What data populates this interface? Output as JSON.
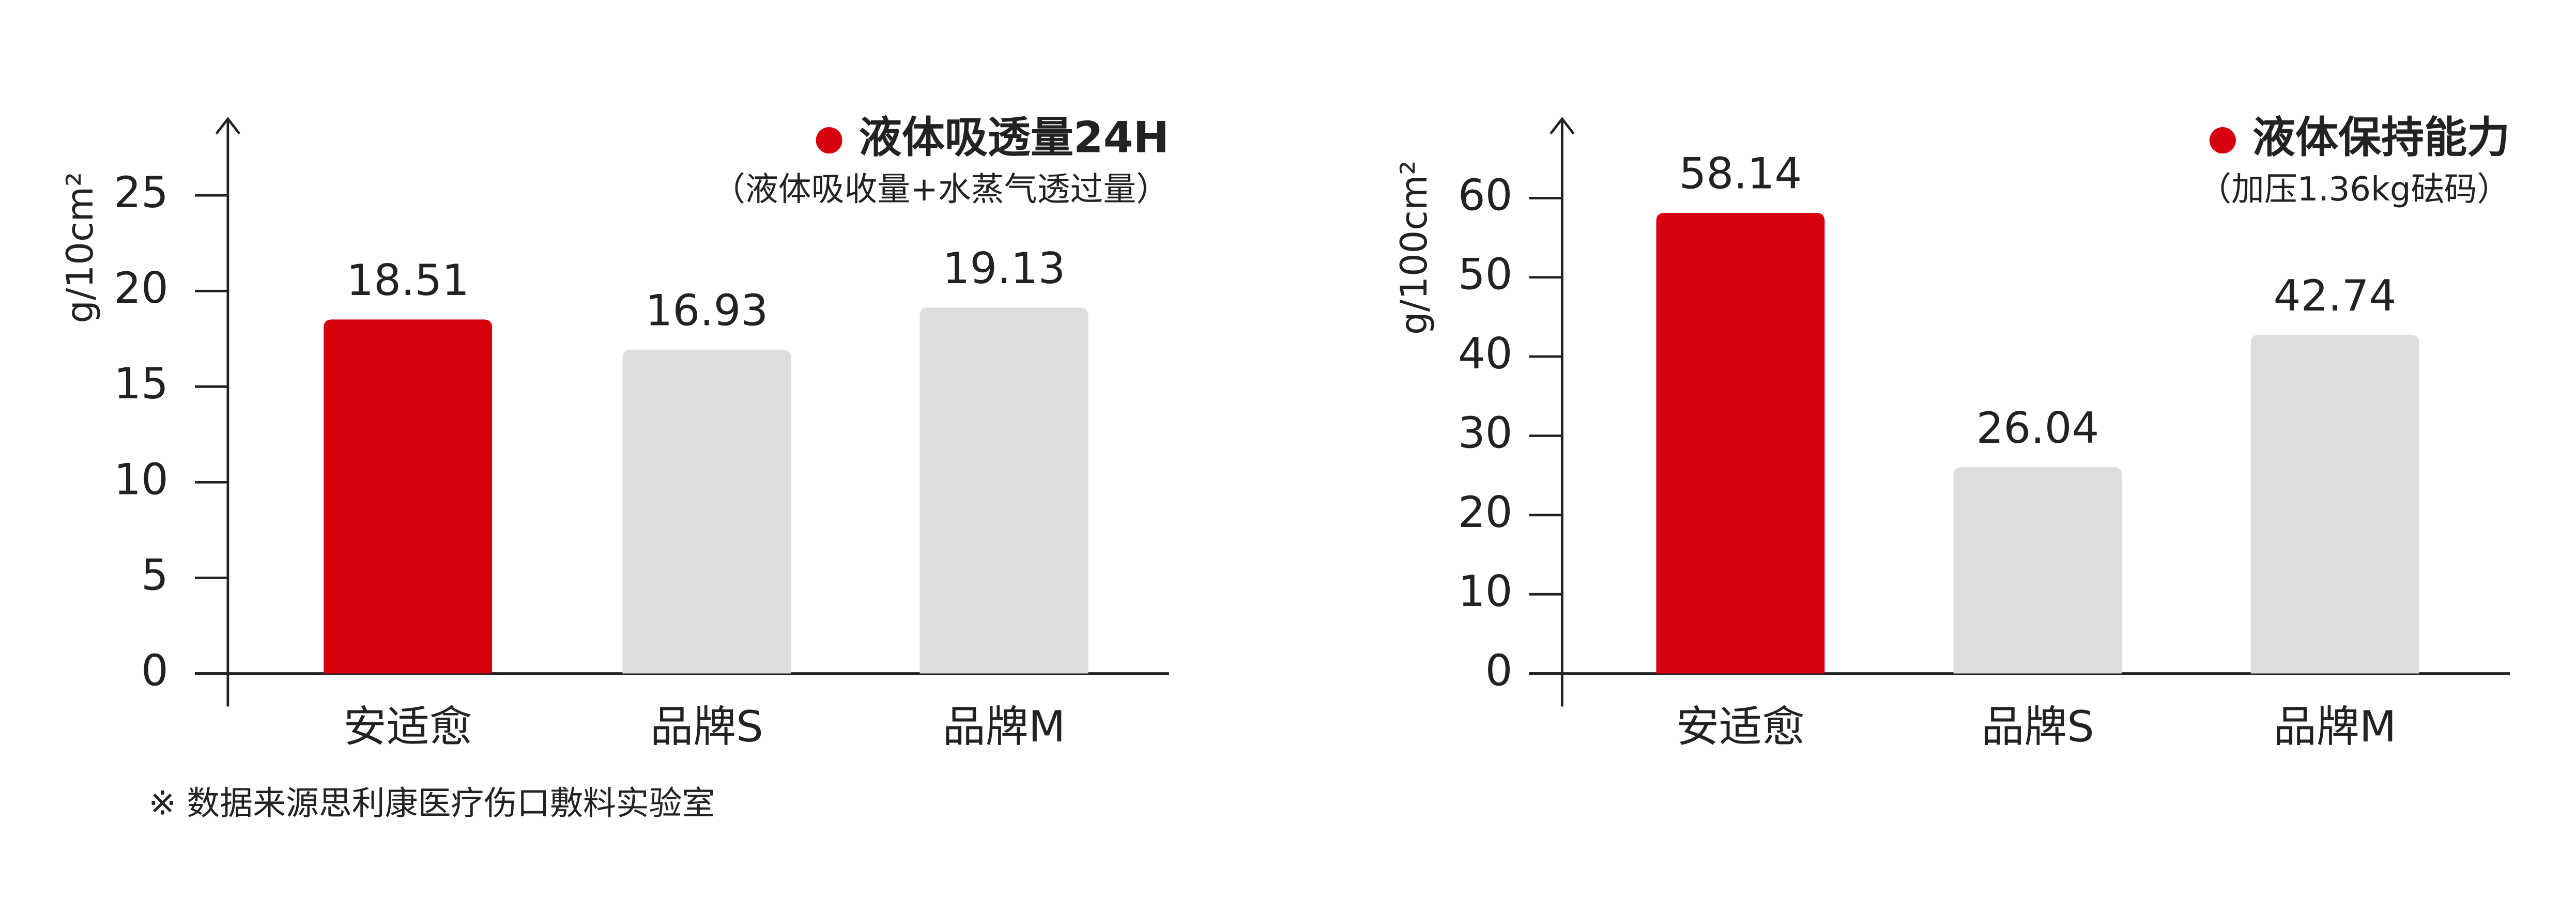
{
  "chart_data": [
    {
      "type": "bar",
      "title": "液体吸透量24H",
      "subtitle": "（液体吸收量+水蒸气透过量）",
      "y_label": "g/10cm²",
      "categories": [
        "安适愈",
        "品牌S",
        "品牌M"
      ],
      "values": [
        18.51,
        16.93,
        19.13
      ],
      "colors": [
        "#d7000f",
        "#dddddd",
        "#dddddd"
      ],
      "title_color": "#d7000f",
      "ylim": [
        0,
        29
      ],
      "yticks": [
        0,
        5,
        10,
        15,
        20,
        25
      ]
    },
    {
      "type": "bar",
      "title": "液体保持能力",
      "subtitle": "（加压1.36kg砝码）",
      "y_label": "g/100cm²",
      "categories": [
        "安适愈",
        "品牌S",
        "品牌M"
      ],
      "values": [
        58.14,
        26.04,
        42.74
      ],
      "colors": [
        "#d7000f",
        "#dddddd",
        "#dddddd"
      ],
      "title_color": "#d7000f",
      "ylim": [
        0,
        70
      ],
      "yticks": [
        0,
        10,
        20,
        30,
        40,
        50,
        60
      ]
    }
  ],
  "footnote": "※   数据来源思利康医疗伤口敷料实验室"
}
